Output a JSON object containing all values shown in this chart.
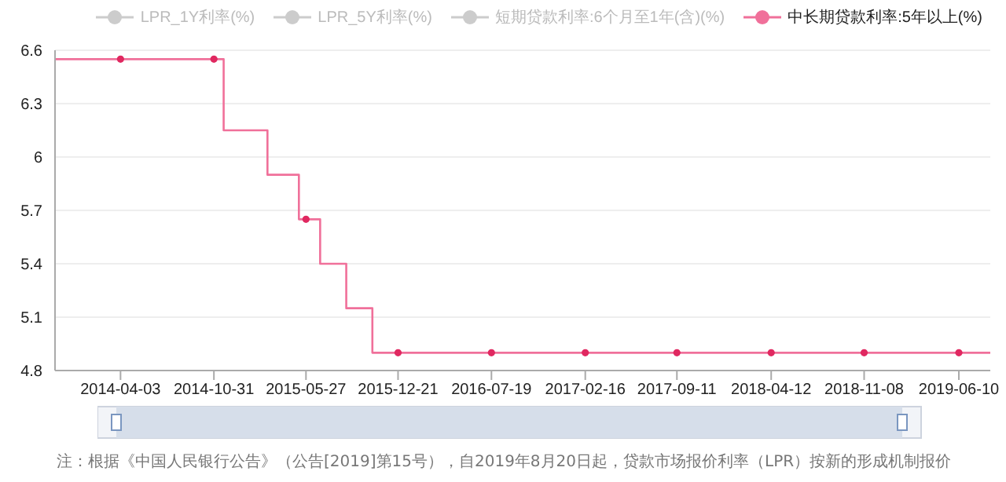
{
  "chart_data": {
    "type": "step",
    "series": [
      {
        "name": "LPR_1Y利率(%)",
        "color": "#cccccc"
      },
      {
        "name": "LPR_5Y利率(%)",
        "color": "#cccccc"
      },
      {
        "name": "短期贷款利率:6个月至1年(含)(%)",
        "color": "#cccccc"
      },
      {
        "name": "中长期贷款利率:5年以上(%)",
        "color": "#f0709a",
        "marker": "none",
        "x": [
          "2013-11-06",
          "2014-11-22",
          "2015-03-01",
          "2015-05-11",
          "2015-06-28",
          "2015-08-26",
          "2015-10-24",
          "2019-08-20"
        ],
        "values": [
          6.55,
          6.15,
          5.9,
          5.65,
          5.4,
          5.15,
          4.9,
          4.9
        ]
      },
      {
        "type": "scatter",
        "color": "#e02860",
        "marker": "circle",
        "x": [
          "2014-04-03",
          "2014-10-31",
          "2015-05-27",
          "2015-12-21",
          "2016-07-19",
          "2017-02-16",
          "2017-09-11",
          "2018-04-12",
          "2018-11-08",
          "2019-06-10"
        ],
        "values": [
          6.55,
          6.55,
          5.65,
          4.9,
          4.9,
          4.9,
          4.9,
          4.9,
          4.9,
          4.9
        ]
      }
    ],
    "xlim": [
      "2013-11-06",
      "2019-08-20"
    ],
    "xticks": [
      "2014-04-03",
      "2014-10-31",
      "2015-05-27",
      "2015-12-21",
      "2016-07-19",
      "2017-02-16",
      "2017-09-11",
      "2018-04-12",
      "2018-11-08",
      "2019-06-10"
    ],
    "ylim": [
      4.8,
      6.6
    ],
    "yticks": [
      4.8,
      5.1,
      5.4,
      5.7,
      6,
      6.3,
      6.6
    ],
    "grid": "y",
    "legend": "top",
    "annotations": [
      "注：根据《中国人民银行公告》（公告[2019]第15号），自2019年8月20日起，贷款市场报价利率（LPR）按新的形成机制报价"
    ]
  }
}
